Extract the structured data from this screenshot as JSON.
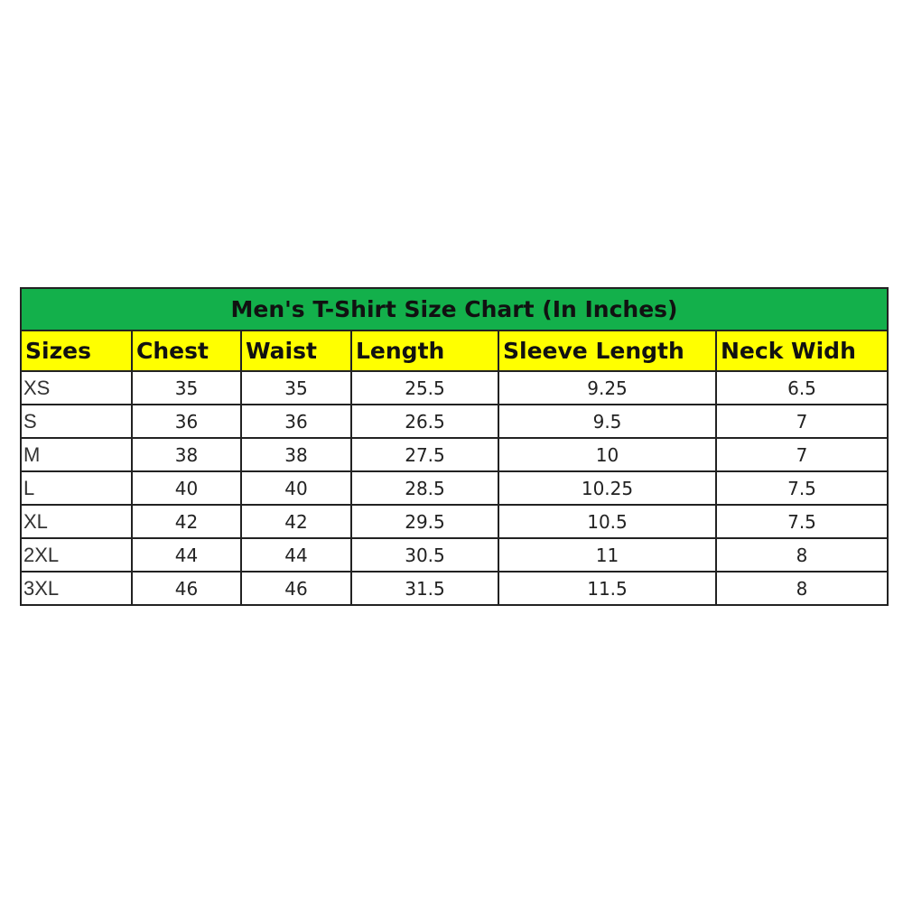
{
  "title": "Men's T-Shirt Size Chart (In Inches)",
  "colors": {
    "title_bg": "#13b04b",
    "header_bg": "#ffff00"
  },
  "headers": [
    "Sizes",
    "Chest",
    "Waist",
    "Length",
    "Sleeve Length",
    "Neck Widh"
  ],
  "rows": [
    [
      "XS",
      "35",
      "35",
      "25.5",
      "9.25",
      "6.5"
    ],
    [
      "S",
      "36",
      "36",
      "26.5",
      "9.5",
      "7"
    ],
    [
      "M",
      "38",
      "38",
      "27.5",
      "10",
      "7"
    ],
    [
      "L",
      "40",
      "40",
      "28.5",
      "10.25",
      "7.5"
    ],
    [
      "XL",
      "42",
      "42",
      "29.5",
      "10.5",
      "7.5"
    ],
    [
      "2XL",
      "44",
      "44",
      "30.5",
      "11",
      "8"
    ],
    [
      "3XL",
      "46",
      "46",
      "31.5",
      "11.5",
      "8"
    ]
  ]
}
